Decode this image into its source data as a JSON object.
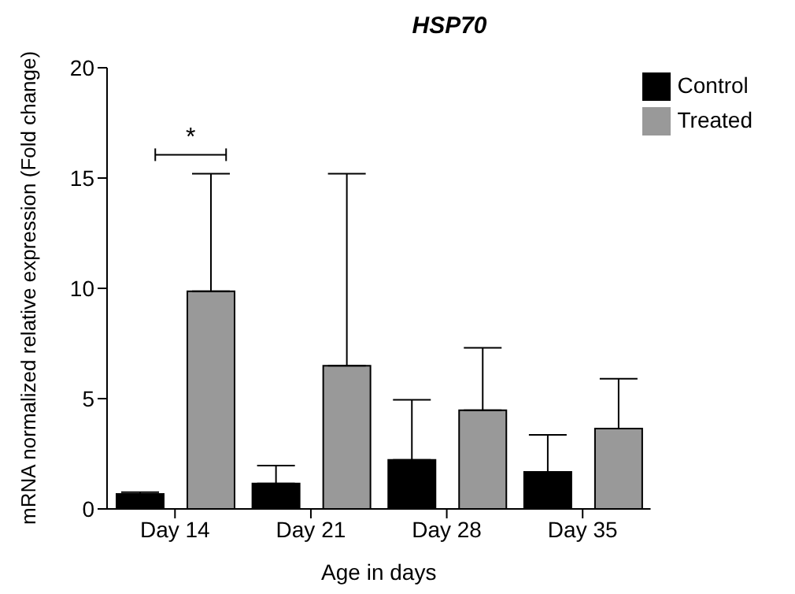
{
  "chart_data": {
    "type": "bar",
    "title": "HSP70",
    "xlabel": "Age in days",
    "ylabel": "mRNA normalized relative expression (Fold change)",
    "categories": [
      "Day 14",
      "Day 21",
      "Day 28",
      "Day 35"
    ],
    "series": [
      {
        "name": "Control",
        "color": "#000000",
        "values": [
          0.68,
          1.15,
          2.22,
          1.68
        ],
        "errors": [
          [
            0.68,
            0.76
          ],
          [
            1.15,
            1.96
          ],
          [
            2.22,
            4.95
          ],
          [
            1.68,
            3.36
          ]
        ]
      },
      {
        "name": "Treated",
        "color": "#999999",
        "values": [
          9.87,
          6.49,
          4.47,
          3.64
        ],
        "errors": [
          [
            9.87,
            15.2
          ],
          [
            6.49,
            15.2
          ],
          [
            4.47,
            7.3
          ],
          [
            3.64,
            5.9
          ]
        ]
      }
    ],
    "ylim": [
      0,
      20
    ],
    "yticks": [
      0,
      5,
      10,
      15,
      20
    ],
    "grid": false,
    "legend": "top right",
    "annotations": [
      "*"
    ]
  }
}
